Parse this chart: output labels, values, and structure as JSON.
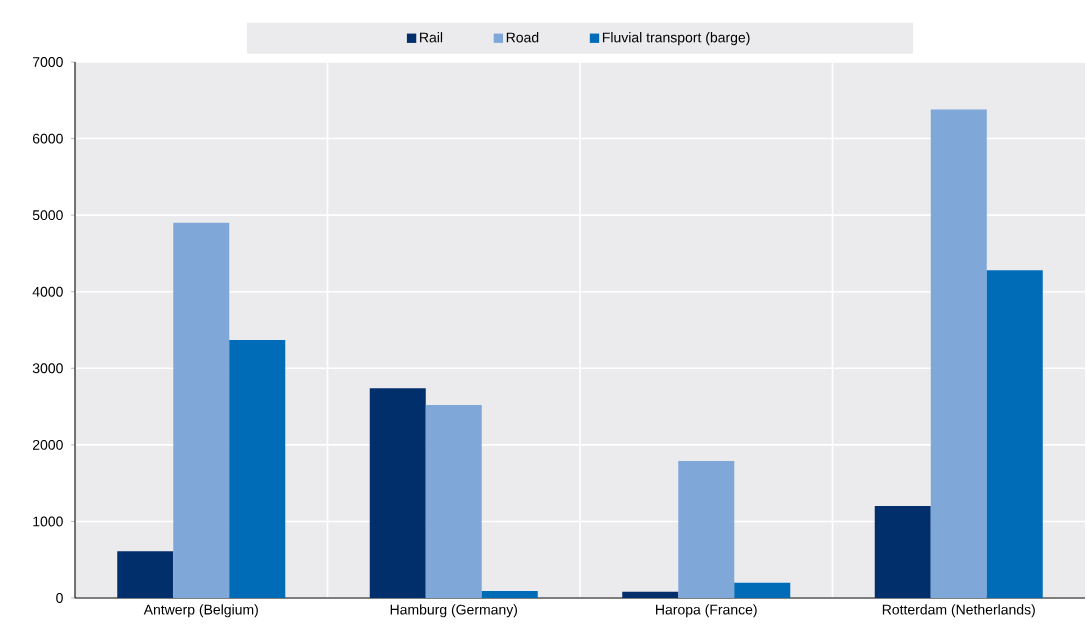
{
  "chart_data": {
    "type": "bar",
    "categories": [
      "Antwerp (Belgium)",
      "Hamburg (Germany)",
      "Haropa (France)",
      "Rotterdam (Netherlands)"
    ],
    "series": [
      {
        "name": "Rail",
        "color": "#002f6c",
        "values": [
          610,
          2740,
          80,
          1200
        ]
      },
      {
        "name": "Road",
        "color": "#7fa8d9",
        "values": [
          4900,
          2520,
          1790,
          6380
        ]
      },
      {
        "name": "Fluvial transport (barge)",
        "color": "#006bb6",
        "values": [
          3370,
          90,
          200,
          4280
        ]
      }
    ],
    "ylim": [
      0,
      7000
    ],
    "yticks": [
      0,
      1000,
      2000,
      3000,
      4000,
      5000,
      6000,
      7000
    ],
    "grid": true,
    "legend": "top"
  }
}
